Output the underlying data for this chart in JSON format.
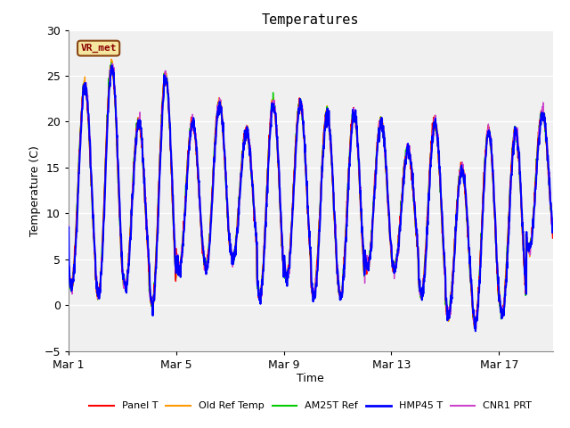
{
  "title": "Temperatures",
  "xlabel": "Time",
  "ylabel": "Temperature (C)",
  "ylim": [
    -5,
    30
  ],
  "yticks": [
    -5,
    0,
    5,
    10,
    15,
    20,
    25,
    30
  ],
  "xtick_labels": [
    "Mar 1",
    "Mar 5",
    "Mar 9",
    "Mar 13",
    "Mar 17"
  ],
  "xtick_positions": [
    0,
    4,
    8,
    12,
    16
  ],
  "annotation_text": "VR_met",
  "fig_bg_color": "#ffffff",
  "plot_bg_color": "#ffffff",
  "shaded_band_ymin": 25,
  "shaded_band_ymax": 30,
  "shaded_band_color": "#e8e8e8",
  "plot_area_color": "#f0f0f0",
  "grid_color": "#dddddd",
  "line_colors": {
    "Panel T": "#ff0000",
    "Old Ref Temp": "#ff9900",
    "AM25T Ref": "#00cc00",
    "HMP45 T": "#0000ff",
    "CNR1 PRT": "#cc44cc"
  },
  "line_width": 1.0,
  "total_days": 18,
  "points_per_day": 96,
  "figsize": [
    6.4,
    4.8
  ],
  "dpi": 100
}
